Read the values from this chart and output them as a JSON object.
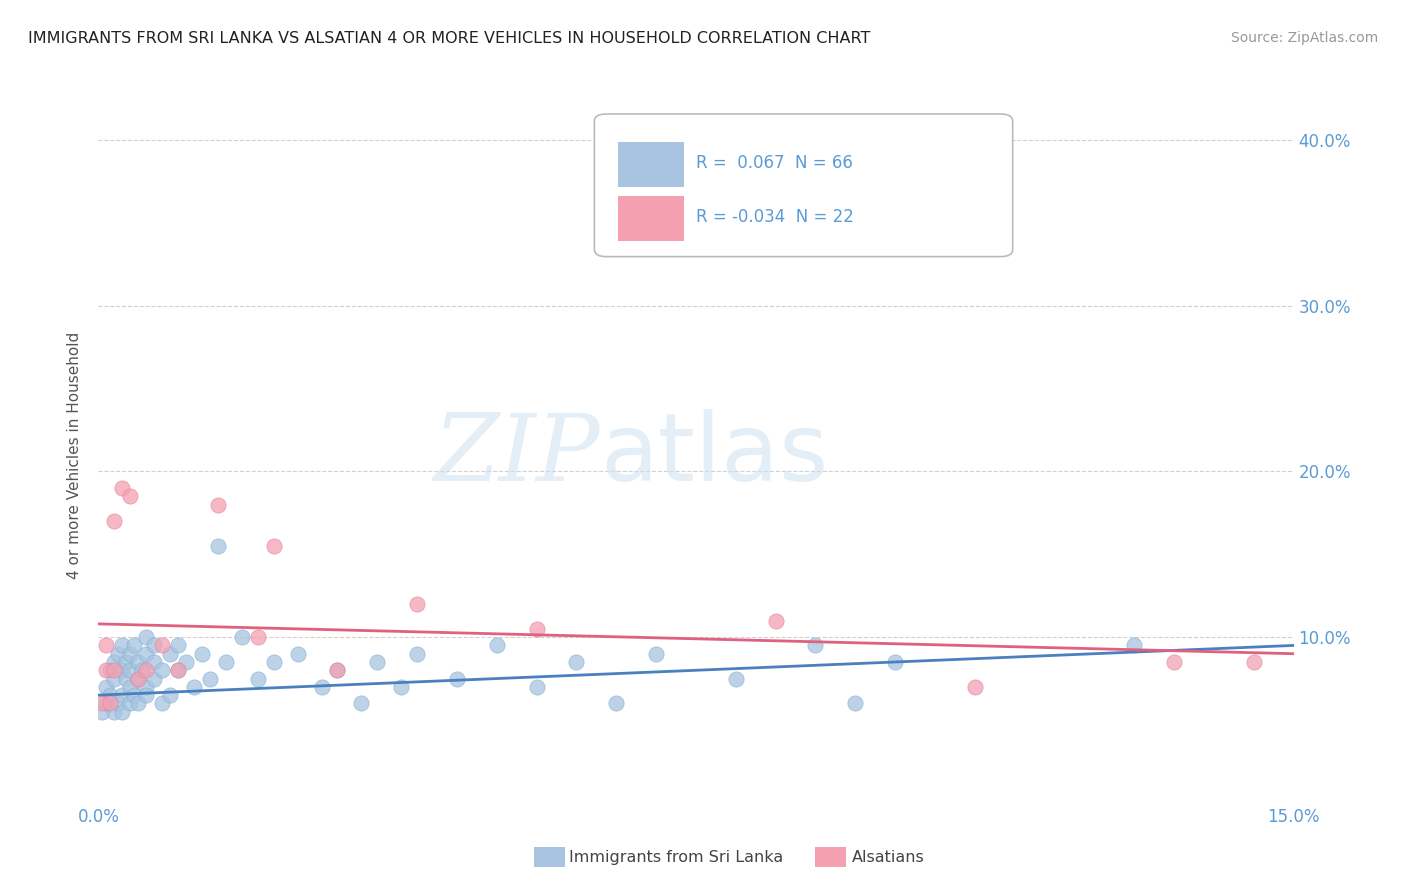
{
  "title": "IMMIGRANTS FROM SRI LANKA VS ALSATIAN 4 OR MORE VEHICLES IN HOUSEHOLD CORRELATION CHART",
  "source": "Source: ZipAtlas.com",
  "ylabel_label": "4 or more Vehicles in Household",
  "watermark_zip": "ZIP",
  "watermark_atlas": "atlas",
  "xlim": [
    0.0,
    0.15
  ],
  "ylim": [
    0.0,
    0.42
  ],
  "xtick_positions": [
    0.0,
    0.15
  ],
  "xtick_labels": [
    "0.0%",
    "15.0%"
  ],
  "ytick_positions": [
    0.1,
    0.2,
    0.3,
    0.4
  ],
  "ytick_labels": [
    "10.0%",
    "20.0%",
    "30.0%",
    "40.0%"
  ],
  "grid_yticks": [
    0.1,
    0.2,
    0.3,
    0.4
  ],
  "r_blue": 0.067,
  "n_blue": 66,
  "r_pink": -0.034,
  "n_pink": 22,
  "legend_label_blue": "Immigrants from Sri Lanka",
  "legend_label_pink": "Alsatians",
  "dot_color_blue": "#a8c4e0",
  "dot_color_pink": "#f4a0b0",
  "line_color_blue": "#4a7fc0",
  "line_color_pink": "#e06080",
  "background_color": "#ffffff",
  "title_color": "#222222",
  "axis_label_color": "#555555",
  "tick_label_color": "#5b9bd5",
  "grid_color": "#cccccc",
  "blue_line_y0": 0.065,
  "blue_line_y1": 0.095,
  "pink_line_y0": 0.108,
  "pink_line_y1": 0.09,
  "blue_dots_x": [
    0.0005,
    0.001,
    0.001,
    0.0015,
    0.0015,
    0.002,
    0.002,
    0.002,
    0.0025,
    0.0025,
    0.003,
    0.003,
    0.003,
    0.003,
    0.0035,
    0.0035,
    0.004,
    0.004,
    0.004,
    0.004,
    0.0045,
    0.0045,
    0.005,
    0.005,
    0.005,
    0.0055,
    0.006,
    0.006,
    0.006,
    0.006,
    0.007,
    0.007,
    0.007,
    0.008,
    0.008,
    0.009,
    0.009,
    0.01,
    0.01,
    0.011,
    0.012,
    0.013,
    0.014,
    0.015,
    0.016,
    0.018,
    0.02,
    0.022,
    0.025,
    0.028,
    0.03,
    0.033,
    0.035,
    0.038,
    0.04,
    0.045,
    0.05,
    0.055,
    0.06,
    0.065,
    0.07,
    0.08,
    0.09,
    0.095,
    0.1,
    0.13
  ],
  "blue_dots_y": [
    0.055,
    0.07,
    0.06,
    0.065,
    0.08,
    0.055,
    0.075,
    0.085,
    0.06,
    0.09,
    0.065,
    0.08,
    0.095,
    0.055,
    0.075,
    0.085,
    0.06,
    0.09,
    0.07,
    0.08,
    0.095,
    0.065,
    0.075,
    0.085,
    0.06,
    0.08,
    0.07,
    0.09,
    0.065,
    0.1,
    0.075,
    0.085,
    0.095,
    0.06,
    0.08,
    0.09,
    0.065,
    0.095,
    0.08,
    0.085,
    0.07,
    0.09,
    0.075,
    0.155,
    0.085,
    0.1,
    0.075,
    0.085,
    0.09,
    0.07,
    0.08,
    0.06,
    0.085,
    0.07,
    0.09,
    0.075,
    0.095,
    0.07,
    0.085,
    0.06,
    0.09,
    0.075,
    0.095,
    0.06,
    0.085,
    0.095
  ],
  "pink_dots_x": [
    0.0005,
    0.001,
    0.001,
    0.0015,
    0.002,
    0.002,
    0.003,
    0.004,
    0.005,
    0.006,
    0.008,
    0.01,
    0.015,
    0.02,
    0.022,
    0.03,
    0.04,
    0.055,
    0.085,
    0.11,
    0.135,
    0.145
  ],
  "pink_dots_y": [
    0.06,
    0.08,
    0.095,
    0.06,
    0.17,
    0.08,
    0.19,
    0.185,
    0.075,
    0.08,
    0.095,
    0.08,
    0.18,
    0.1,
    0.155,
    0.08,
    0.12,
    0.105,
    0.11,
    0.07,
    0.085,
    0.085
  ]
}
